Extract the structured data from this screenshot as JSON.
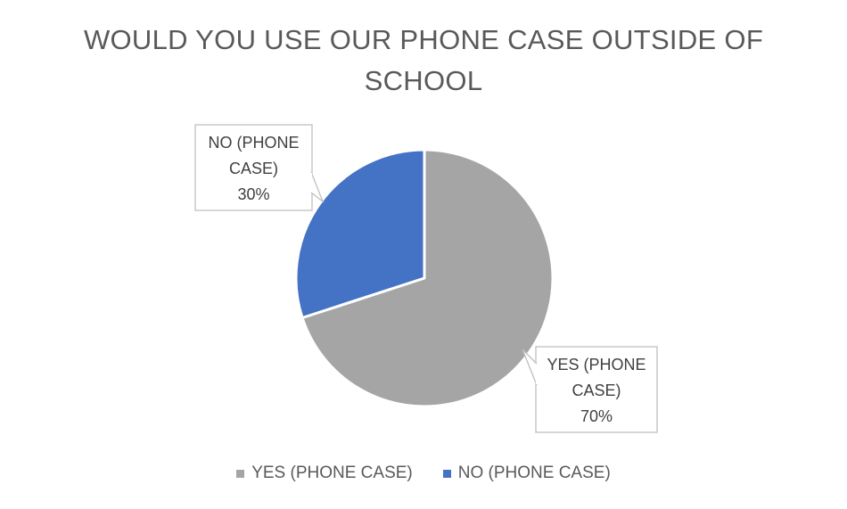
{
  "chart_data": {
    "type": "pie",
    "title": "WOULD YOU USE OUR PHONE CASE OUTSIDE OF SCHOOL",
    "slices": [
      {
        "label": "YES (PHONE CASE)",
        "value": 70,
        "display": "70%",
        "color": "#a5a5a5"
      },
      {
        "label": "NO (PHONE CASE)",
        "value": 30,
        "display": "30%",
        "color": "#4472c4"
      }
    ],
    "legend_position": "bottom",
    "data_labels": "callouts"
  },
  "callouts": [
    {
      "lines": [
        "YES (PHONE",
        "CASE)"
      ],
      "value": "70%"
    },
    {
      "lines": [
        "NO (PHONE",
        "CASE)"
      ],
      "value": "30%"
    }
  ]
}
